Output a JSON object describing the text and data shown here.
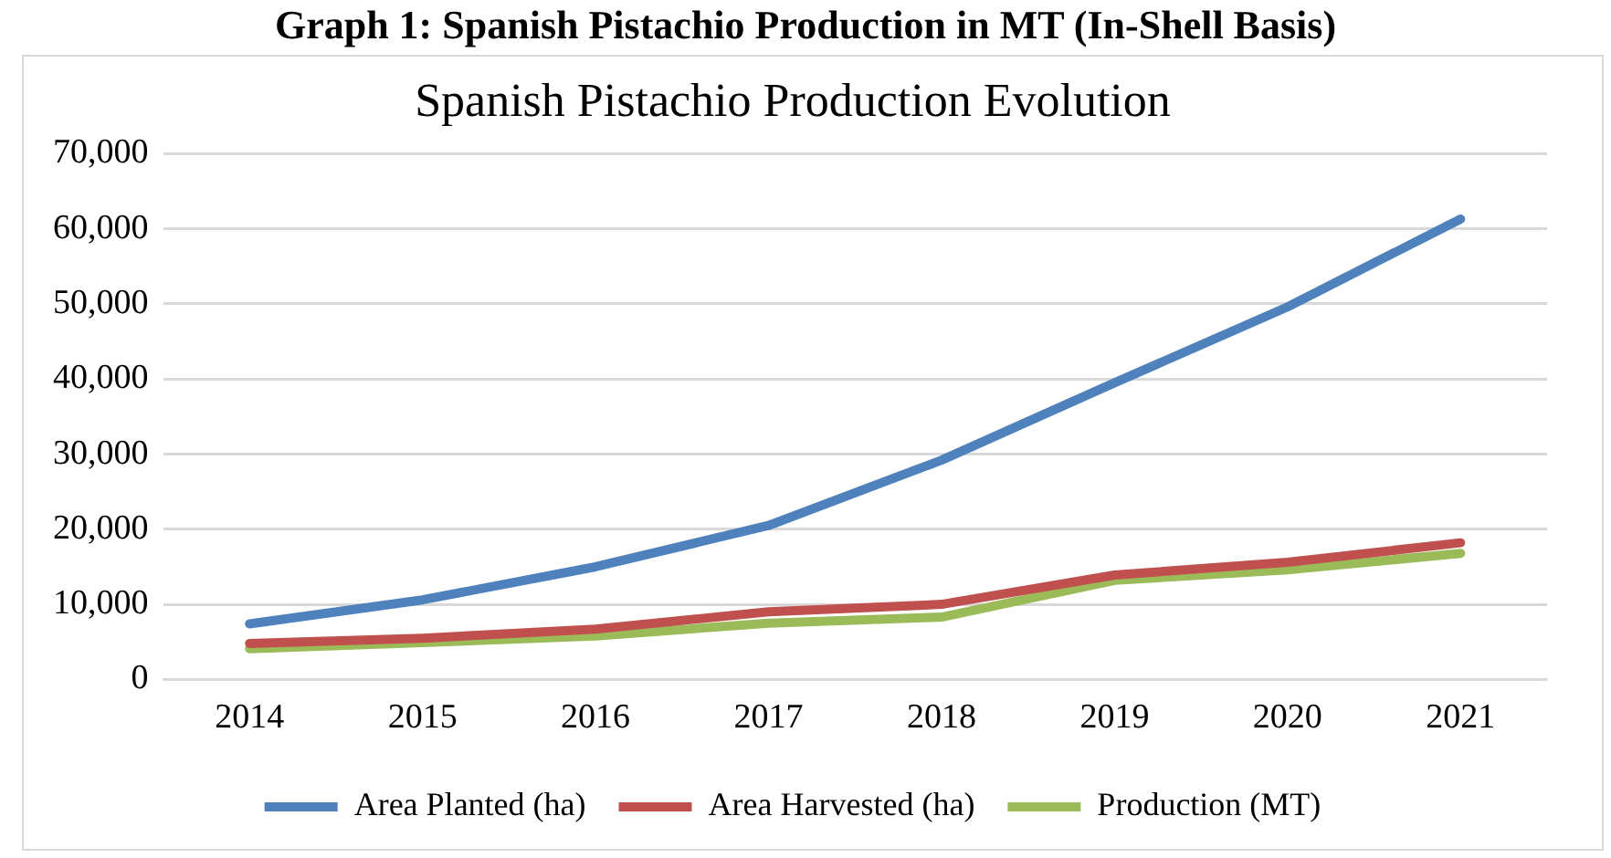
{
  "chart_data": {
    "type": "line",
    "title": "Graph 1: Spanish Pistachio Production in MT (In-Shell Basis)",
    "subtitle": "Spanish Pistachio Production Evolution",
    "categories": [
      "2014",
      "2015",
      "2016",
      "2017",
      "2018",
      "2019",
      "2020",
      "2021"
    ],
    "series": [
      {
        "name": "Area Planted (ha)",
        "color": "#4f81bd",
        "values": [
          7400,
          10600,
          15000,
          20500,
          29200,
          39500,
          49600,
          61300
        ]
      },
      {
        "name": "Area Harvested (ha)",
        "color": "#c0504d",
        "values": [
          4800,
          5500,
          6700,
          9000,
          10000,
          13900,
          15600,
          18200
        ]
      },
      {
        "name": "Production (MT)",
        "color": "#9bbb59",
        "values": [
          4100,
          4900,
          5800,
          7500,
          8300,
          13200,
          14600,
          16800
        ]
      }
    ],
    "ylim": [
      0,
      70000
    ],
    "yticks": [
      0,
      {
        "value": 10000,
        "label": "10,000"
      },
      {
        "value": 20000,
        "label": "20,000"
      },
      {
        "value": 30000,
        "label": "30,000"
      },
      {
        "value": 40000,
        "label": "40,000"
      },
      {
        "value": 50000,
        "label": "50,000"
      },
      {
        "value": 60000,
        "label": "60,000"
      },
      {
        "value": 70000,
        "label": "70,000"
      }
    ],
    "grid": "y",
    "legend": "bottom",
    "marker": "none",
    "line_style": "solid"
  }
}
